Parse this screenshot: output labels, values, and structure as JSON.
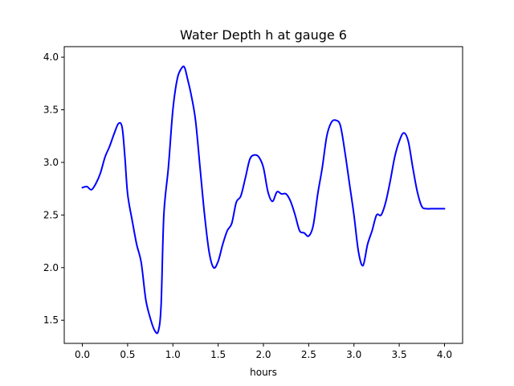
{
  "chart_data": {
    "type": "line",
    "title": "Water Depth h at gauge 6",
    "xlabel": "hours",
    "ylabel": "",
    "xlim": [
      -0.2,
      4.2
    ],
    "ylim": [
      1.28,
      4.1
    ],
    "xticks": [
      0.0,
      0.5,
      1.0,
      1.5,
      2.0,
      2.5,
      3.0,
      3.5,
      4.0
    ],
    "xtick_labels": [
      "0.0",
      "0.5",
      "1.0",
      "1.5",
      "2.0",
      "2.5",
      "3.0",
      "3.5",
      "4.0"
    ],
    "yticks": [
      1.5,
      2.0,
      2.5,
      3.0,
      3.5,
      4.0
    ],
    "ytick_labels": [
      "1.5",
      "2.0",
      "2.5",
      "3.0",
      "3.5",
      "4.0"
    ],
    "grid": false,
    "series": [
      {
        "color": "#0000ff",
        "x": [
          0.0,
          0.05,
          0.1,
          0.15,
          0.2,
          0.25,
          0.3,
          0.35,
          0.4,
          0.44,
          0.47,
          0.5,
          0.55,
          0.6,
          0.65,
          0.7,
          0.75,
          0.8,
          0.84,
          0.87,
          0.9,
          0.95,
          1.0,
          1.05,
          1.1,
          1.13,
          1.16,
          1.2,
          1.25,
          1.3,
          1.35,
          1.4,
          1.45,
          1.5,
          1.55,
          1.6,
          1.65,
          1.7,
          1.75,
          1.8,
          1.85,
          1.9,
          1.95,
          2.0,
          2.05,
          2.1,
          2.15,
          2.2,
          2.25,
          2.3,
          2.35,
          2.4,
          2.45,
          2.5,
          2.55,
          2.6,
          2.65,
          2.7,
          2.75,
          2.8,
          2.85,
          2.9,
          2.95,
          3.0,
          3.05,
          3.1,
          3.15,
          3.2,
          3.25,
          3.3,
          3.35,
          3.4,
          3.45,
          3.5,
          3.55,
          3.6,
          3.65,
          3.7,
          3.75,
          3.8,
          3.85,
          3.9,
          3.95,
          4.0
        ],
        "values": [
          2.76,
          2.77,
          2.74,
          2.8,
          2.9,
          3.05,
          3.15,
          3.27,
          3.37,
          3.33,
          3.05,
          2.7,
          2.45,
          2.22,
          2.05,
          1.7,
          1.52,
          1.4,
          1.4,
          1.65,
          2.5,
          2.95,
          3.5,
          3.8,
          3.9,
          3.9,
          3.8,
          3.65,
          3.4,
          2.95,
          2.5,
          2.15,
          2.0,
          2.06,
          2.22,
          2.35,
          2.42,
          2.62,
          2.68,
          2.85,
          3.03,
          3.07,
          3.05,
          2.95,
          2.72,
          2.63,
          2.72,
          2.7,
          2.7,
          2.63,
          2.5,
          2.35,
          2.33,
          2.3,
          2.4,
          2.7,
          2.95,
          3.25,
          3.38,
          3.4,
          3.35,
          3.1,
          2.8,
          2.5,
          2.15,
          2.02,
          2.22,
          2.35,
          2.5,
          2.5,
          2.62,
          2.82,
          3.05,
          3.2,
          3.28,
          3.2,
          2.95,
          2.72,
          2.58,
          2.56,
          2.56,
          2.56,
          2.56,
          2.56
        ]
      }
    ]
  }
}
